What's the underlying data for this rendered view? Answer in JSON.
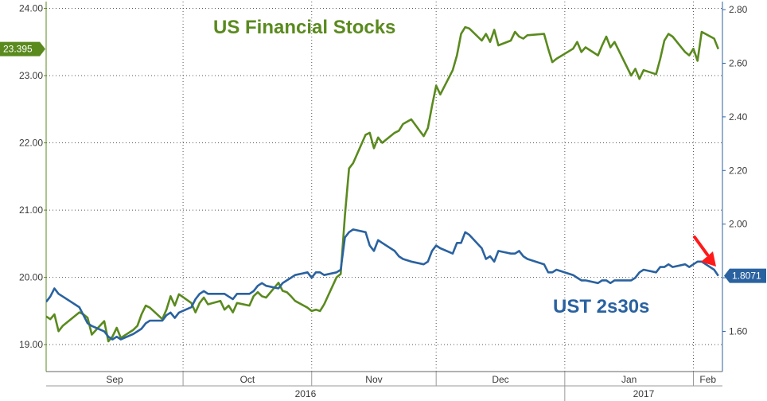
{
  "chart_data": {
    "type": "line",
    "title": "",
    "x_months": [
      "Sep",
      "Oct",
      "Nov",
      "Dec",
      "Jan",
      "Feb"
    ],
    "x_years": [
      "2016",
      "2017"
    ],
    "left_axis": {
      "ticks": [
        "19.00",
        "20.00",
        "21.00",
        "22.00",
        "23.00",
        "24.00"
      ],
      "ylim": [
        18.6,
        24.1
      ]
    },
    "right_axis": {
      "ticks": [
        "1.60",
        "1.80",
        "2.00",
        "2.20",
        "2.40",
        "2.60",
        "2.80"
      ],
      "ylim": [
        1.45,
        2.83
      ]
    },
    "grid": true,
    "series": [
      {
        "name": "US Financial Stocks",
        "axis": "left",
        "color": "#5a8a1e",
        "last_value": "23.395",
        "points": [
          [
            "2016-08-29",
            19.42
          ],
          [
            "2016-08-30",
            19.38
          ],
          [
            "2016-08-31",
            19.45
          ],
          [
            "2016-09-01",
            19.2
          ],
          [
            "2016-09-02",
            19.28
          ],
          [
            "2016-09-06",
            19.48
          ],
          [
            "2016-09-07",
            19.45
          ],
          [
            "2016-09-08",
            19.4
          ],
          [
            "2016-09-09",
            19.15
          ],
          [
            "2016-09-12",
            19.35
          ],
          [
            "2016-09-13",
            19.05
          ],
          [
            "2016-09-14",
            19.12
          ],
          [
            "2016-09-15",
            19.25
          ],
          [
            "2016-09-16",
            19.1
          ],
          [
            "2016-09-19",
            19.22
          ],
          [
            "2016-09-20",
            19.28
          ],
          [
            "2016-09-21",
            19.45
          ],
          [
            "2016-09-22",
            19.58
          ],
          [
            "2016-09-23",
            19.55
          ],
          [
            "2016-09-26",
            19.38
          ],
          [
            "2016-09-27",
            19.52
          ],
          [
            "2016-09-28",
            19.72
          ],
          [
            "2016-09-29",
            19.58
          ],
          [
            "2016-09-30",
            19.75
          ],
          [
            "2016-10-03",
            19.62
          ],
          [
            "2016-10-04",
            19.48
          ],
          [
            "2016-10-05",
            19.62
          ],
          [
            "2016-10-06",
            19.7
          ],
          [
            "2016-10-07",
            19.6
          ],
          [
            "2016-10-10",
            19.65
          ],
          [
            "2016-10-11",
            19.52
          ],
          [
            "2016-10-12",
            19.58
          ],
          [
            "2016-10-13",
            19.48
          ],
          [
            "2016-10-14",
            19.62
          ],
          [
            "2016-10-17",
            19.58
          ],
          [
            "2016-10-18",
            19.72
          ],
          [
            "2016-10-19",
            19.78
          ],
          [
            "2016-10-20",
            19.72
          ],
          [
            "2016-10-21",
            19.7
          ],
          [
            "2016-10-24",
            19.92
          ],
          [
            "2016-10-25",
            19.8
          ],
          [
            "2016-10-26",
            19.78
          ],
          [
            "2016-10-27",
            19.72
          ],
          [
            "2016-10-28",
            19.65
          ],
          [
            "2016-10-31",
            19.55
          ],
          [
            "2016-11-01",
            19.5
          ],
          [
            "2016-11-02",
            19.52
          ],
          [
            "2016-11-03",
            19.5
          ],
          [
            "2016-11-04",
            19.6
          ],
          [
            "2016-11-07",
            20.0
          ],
          [
            "2016-11-08",
            20.05
          ],
          [
            "2016-11-09",
            20.92
          ],
          [
            "2016-11-10",
            21.62
          ],
          [
            "2016-11-11",
            21.7
          ],
          [
            "2016-11-14",
            22.12
          ],
          [
            "2016-11-15",
            22.15
          ],
          [
            "2016-11-16",
            21.92
          ],
          [
            "2016-11-17",
            22.08
          ],
          [
            "2016-11-18",
            22.0
          ],
          [
            "2016-11-21",
            22.15
          ],
          [
            "2016-11-22",
            22.18
          ],
          [
            "2016-11-23",
            22.28
          ],
          [
            "2016-11-25",
            22.35
          ],
          [
            "2016-11-28",
            22.1
          ],
          [
            "2016-11-29",
            22.22
          ],
          [
            "2016-11-30",
            22.55
          ],
          [
            "2016-12-01",
            22.85
          ],
          [
            "2016-12-02",
            22.72
          ],
          [
            "2016-12-05",
            23.08
          ],
          [
            "2016-12-06",
            23.3
          ],
          [
            "2016-12-07",
            23.62
          ],
          [
            "2016-12-08",
            23.72
          ],
          [
            "2016-12-09",
            23.7
          ],
          [
            "2016-12-12",
            23.52
          ],
          [
            "2016-12-13",
            23.62
          ],
          [
            "2016-12-14",
            23.5
          ],
          [
            "2016-12-15",
            23.68
          ],
          [
            "2016-12-16",
            23.45
          ],
          [
            "2016-12-19",
            23.52
          ],
          [
            "2016-12-20",
            23.65
          ],
          [
            "2016-12-21",
            23.58
          ],
          [
            "2016-12-22",
            23.55
          ],
          [
            "2016-12-23",
            23.6
          ],
          [
            "2016-12-27",
            23.62
          ],
          [
            "2016-12-28",
            23.4
          ],
          [
            "2016-12-29",
            23.2
          ],
          [
            "2016-12-30",
            23.25
          ],
          [
            "2017-01-03",
            23.4
          ],
          [
            "2017-01-04",
            23.5
          ],
          [
            "2017-01-05",
            23.35
          ],
          [
            "2017-01-06",
            23.42
          ],
          [
            "2017-01-09",
            23.3
          ],
          [
            "2017-01-10",
            23.45
          ],
          [
            "2017-01-11",
            23.58
          ],
          [
            "2017-01-12",
            23.42
          ],
          [
            "2017-01-13",
            23.5
          ],
          [
            "2017-01-17",
            23.0
          ],
          [
            "2017-01-18",
            23.1
          ],
          [
            "2017-01-19",
            22.95
          ],
          [
            "2017-01-20",
            23.08
          ],
          [
            "2017-01-23",
            23.02
          ],
          [
            "2017-01-24",
            23.25
          ],
          [
            "2017-01-25",
            23.52
          ],
          [
            "2017-01-26",
            23.62
          ],
          [
            "2017-01-27",
            23.58
          ],
          [
            "2017-01-30",
            23.35
          ],
          [
            "2017-01-31",
            23.3
          ],
          [
            "2017-02-01",
            23.4
          ],
          [
            "2017-02-02",
            23.22
          ],
          [
            "2017-02-03",
            23.65
          ],
          [
            "2017-02-06",
            23.55
          ],
          [
            "2017-02-07",
            23.395
          ]
        ]
      },
      {
        "name": "UST 2s30s",
        "axis": "right",
        "color": "#2a62a0",
        "last_value": "1.8071",
        "points": [
          [
            "2016-08-29",
            1.71
          ],
          [
            "2016-08-30",
            1.73
          ],
          [
            "2016-08-31",
            1.76
          ],
          [
            "2016-09-01",
            1.74
          ],
          [
            "2016-09-02",
            1.73
          ],
          [
            "2016-09-06",
            1.69
          ],
          [
            "2016-09-07",
            1.66
          ],
          [
            "2016-09-08",
            1.63
          ],
          [
            "2016-09-09",
            1.62
          ],
          [
            "2016-09-12",
            1.6
          ],
          [
            "2016-09-13",
            1.58
          ],
          [
            "2016-09-14",
            1.57
          ],
          [
            "2016-09-15",
            1.58
          ],
          [
            "2016-09-16",
            1.57
          ],
          [
            "2016-09-19",
            1.59
          ],
          [
            "2016-09-20",
            1.6
          ],
          [
            "2016-09-21",
            1.61
          ],
          [
            "2016-09-22",
            1.63
          ],
          [
            "2016-09-23",
            1.64
          ],
          [
            "2016-09-26",
            1.64
          ],
          [
            "2016-09-27",
            1.66
          ],
          [
            "2016-09-28",
            1.67
          ],
          [
            "2016-09-29",
            1.65
          ],
          [
            "2016-09-30",
            1.67
          ],
          [
            "2016-10-03",
            1.69
          ],
          [
            "2016-10-04",
            1.72
          ],
          [
            "2016-10-05",
            1.74
          ],
          [
            "2016-10-06",
            1.75
          ],
          [
            "2016-10-07",
            1.74
          ],
          [
            "2016-10-10",
            1.74
          ],
          [
            "2016-10-11",
            1.74
          ],
          [
            "2016-10-12",
            1.73
          ],
          [
            "2016-10-13",
            1.72
          ],
          [
            "2016-10-14",
            1.74
          ],
          [
            "2016-10-17",
            1.74
          ],
          [
            "2016-10-18",
            1.75
          ],
          [
            "2016-10-19",
            1.77
          ],
          [
            "2016-10-20",
            1.78
          ],
          [
            "2016-10-21",
            1.77
          ],
          [
            "2016-10-24",
            1.76
          ],
          [
            "2016-10-25",
            1.78
          ],
          [
            "2016-10-26",
            1.79
          ],
          [
            "2016-10-27",
            1.8
          ],
          [
            "2016-10-28",
            1.81
          ],
          [
            "2016-10-31",
            1.82
          ],
          [
            "2016-11-01",
            1.8
          ],
          [
            "2016-11-02",
            1.82
          ],
          [
            "2016-11-03",
            1.82
          ],
          [
            "2016-11-04",
            1.81
          ],
          [
            "2016-11-07",
            1.82
          ],
          [
            "2016-11-08",
            1.83
          ],
          [
            "2016-11-09",
            1.95
          ],
          [
            "2016-11-10",
            1.97
          ],
          [
            "2016-11-11",
            1.98
          ],
          [
            "2016-11-14",
            1.97
          ],
          [
            "2016-11-15",
            1.92
          ],
          [
            "2016-11-16",
            1.9
          ],
          [
            "2016-11-17",
            1.94
          ],
          [
            "2016-11-18",
            1.93
          ],
          [
            "2016-11-21",
            1.9
          ],
          [
            "2016-11-22",
            1.88
          ],
          [
            "2016-11-23",
            1.87
          ],
          [
            "2016-11-25",
            1.86
          ],
          [
            "2016-11-28",
            1.85
          ],
          [
            "2016-11-29",
            1.86
          ],
          [
            "2016-11-30",
            1.9
          ],
          [
            "2016-12-01",
            1.92
          ],
          [
            "2016-12-02",
            1.91
          ],
          [
            "2016-12-05",
            1.89
          ],
          [
            "2016-12-06",
            1.93
          ],
          [
            "2016-12-07",
            1.93
          ],
          [
            "2016-12-08",
            1.97
          ],
          [
            "2016-12-09",
            1.96
          ],
          [
            "2016-12-12",
            1.91
          ],
          [
            "2016-12-13",
            1.87
          ],
          [
            "2016-12-14",
            1.88
          ],
          [
            "2016-12-15",
            1.86
          ],
          [
            "2016-12-16",
            1.9
          ],
          [
            "2016-12-19",
            1.89
          ],
          [
            "2016-12-20",
            1.89
          ],
          [
            "2016-12-21",
            1.9
          ],
          [
            "2016-12-22",
            1.88
          ],
          [
            "2016-12-23",
            1.87
          ],
          [
            "2016-12-27",
            1.85
          ],
          [
            "2016-12-28",
            1.82
          ],
          [
            "2016-12-29",
            1.82
          ],
          [
            "2016-12-30",
            1.83
          ],
          [
            "2017-01-03",
            1.81
          ],
          [
            "2017-01-04",
            1.8
          ],
          [
            "2017-01-05",
            1.79
          ],
          [
            "2017-01-06",
            1.79
          ],
          [
            "2017-01-09",
            1.78
          ],
          [
            "2017-01-10",
            1.79
          ],
          [
            "2017-01-11",
            1.79
          ],
          [
            "2017-01-12",
            1.78
          ],
          [
            "2017-01-13",
            1.79
          ],
          [
            "2017-01-17",
            1.79
          ],
          [
            "2017-01-18",
            1.8
          ],
          [
            "2017-01-19",
            1.82
          ],
          [
            "2017-01-20",
            1.83
          ],
          [
            "2017-01-23",
            1.82
          ],
          [
            "2017-01-24",
            1.84
          ],
          [
            "2017-01-25",
            1.84
          ],
          [
            "2017-01-26",
            1.85
          ],
          [
            "2017-01-27",
            1.84
          ],
          [
            "2017-01-30",
            1.85
          ],
          [
            "2017-01-31",
            1.84
          ],
          [
            "2017-02-01",
            1.85
          ],
          [
            "2017-02-02",
            1.86
          ],
          [
            "2017-02-03",
            1.86
          ],
          [
            "2017-02-06",
            1.83
          ],
          [
            "2017-02-07",
            1.8071
          ]
        ]
      }
    ],
    "annotations": [
      {
        "type": "arrow",
        "color": "#ff0000",
        "direction": "down-right",
        "points_to": "UST 2s30s last value"
      }
    ]
  }
}
